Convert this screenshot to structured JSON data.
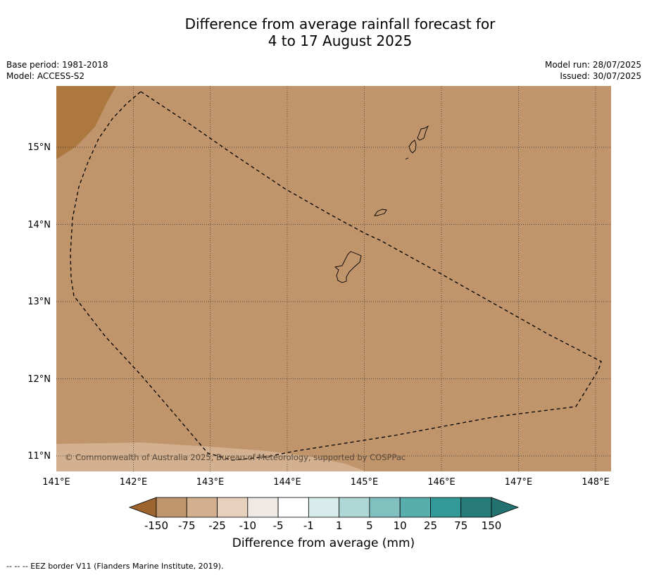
{
  "title": {
    "line1": "Difference from average rainfall forecast for",
    "line2": "4 to 17 August 2025"
  },
  "meta_left": {
    "base_period": "Base period: 1981-2018",
    "model": "Model: ACCESS-S2"
  },
  "meta_right": {
    "model_run": "Model run: 28/07/2025",
    "issued": "Issued: 30/07/2025"
  },
  "map": {
    "lon_range": [
      141,
      148.2
    ],
    "lat_range": [
      10.8,
      15.8
    ],
    "x_ticks": [
      "141°E",
      "142°E",
      "143°E",
      "144°E",
      "145°E",
      "146°E",
      "147°E",
      "148°E"
    ],
    "y_ticks": [
      "15°N",
      "14°N",
      "13°N",
      "12°N",
      "11°N"
    ],
    "background_color": "#c0956b",
    "drier_color": "#ad7740",
    "lighter_color": "#d3b08f",
    "grid": true,
    "copyright": "© Commonwealth of Australia 2025, Bureau of Meteorology, supported by COSPPac"
  },
  "colorbar": {
    "labels": [
      "-150",
      "-75",
      "-25",
      "-10",
      "-5",
      "-1",
      "1",
      "5",
      "10",
      "25",
      "75",
      "150"
    ],
    "colors": [
      "#ad7740",
      "#c0956b",
      "#d3b08f",
      "#e7d1bd",
      "#efe9e4",
      "#ffffff",
      "#d6ebea",
      "#afd7d5",
      "#82c0c0",
      "#58adad",
      "#339a99",
      "#277b78"
    ],
    "under_color": "#9c6530",
    "over_color": "#227370",
    "title": "Difference from average (mm)"
  },
  "footnote": "--  --  -- EEZ border V11 (Flanders Marine Institute, 2019)."
}
